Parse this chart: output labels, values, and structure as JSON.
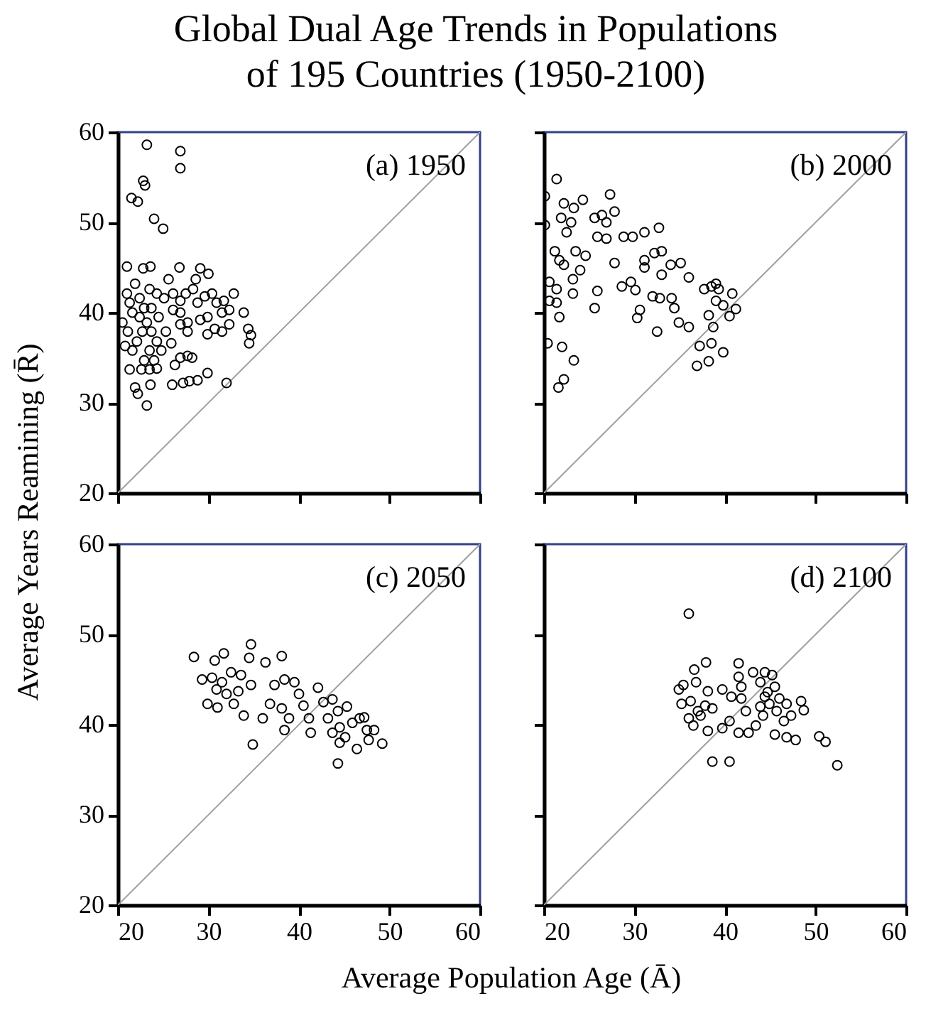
{
  "chart_data": [
    {
      "type": "scatter",
      "title": "Global Dual Age Trends in Populations of 195 Countries (1950-2100)",
      "xlabel": "Average Population Age (Ā)",
      "ylabel": "Average Years Reamining (R̄)",
      "annotations": [
        "(a) 1950"
      ],
      "xlim": [
        20,
        60
      ],
      "ylim": [
        20,
        60
      ],
      "xticks": [
        20,
        30,
        40,
        50,
        60
      ],
      "yticks": [
        20,
        30,
        40,
        50,
        60
      ],
      "tick_labels": "y",
      "series": [
        {
          "type": "line",
          "color": "#a0a0a0",
          "x": [
            20,
            60
          ],
          "values": [
            20,
            60
          ]
        },
        {
          "color": "#000000",
          "marker": "circle",
          "x": [
            23.2,
            26.9,
            26.9,
            22.8,
            23.0,
            21.5,
            22.2,
            24.0,
            25.0,
            21.0,
            22.8,
            23.6,
            26.8,
            29.1,
            30.0,
            34.4,
            34.7,
            34.5,
            26.3,
            26.9,
            27.7,
            28.2,
            26.0,
            27.2,
            27.9,
            28.8,
            29.9,
            32.0,
            21.9,
            22.2,
            23.6,
            23.2,
            22.6,
            24.3,
            21.0,
            21.3,
            20.5,
            21.1,
            20.8,
            21.6,
            22.1,
            22.7,
            23.2,
            23.7,
            24.3,
            24.8,
            23.5,
            22.9,
            24.0,
            22.4,
            21.9,
            23.5,
            24.3,
            25.1,
            21.6,
            22.4,
            22.9,
            23.7,
            24.5,
            25.3,
            25.9,
            21.3,
            23.5,
            25.6,
            26.1,
            26.9,
            27.5,
            28.3,
            28.8,
            29.6,
            30.4,
            30.9,
            31.7,
            32.8,
            32.3,
            33.9,
            31.5,
            29.9,
            30.7,
            29.9,
            31.5,
            32.3,
            27.7,
            27.7,
            26.9,
            26.1,
            29.1,
            28.6,
            26.9
          ],
          "values": [
            58.6,
            57.9,
            56.0,
            54.6,
            54.1,
            52.7,
            52.3,
            50.4,
            49.3,
            45.1,
            44.9,
            45.1,
            45.0,
            44.9,
            44.3,
            38.2,
            37.5,
            36.6,
            34.2,
            35.0,
            35.2,
            35.0,
            32.0,
            32.2,
            32.4,
            32.5,
            33.3,
            32.2,
            31.7,
            31.0,
            32.0,
            29.7,
            33.7,
            33.8,
            42.1,
            41.1,
            38.9,
            37.9,
            36.3,
            35.8,
            36.8,
            37.9,
            38.9,
            37.9,
            36.8,
            35.8,
            35.8,
            34.7,
            34.7,
            41.6,
            43.2,
            42.6,
            42.1,
            41.6,
            40.0,
            39.5,
            40.5,
            40.5,
            39.5,
            37.9,
            36.6,
            33.7,
            33.7,
            43.7,
            42.1,
            41.3,
            42.1,
            42.6,
            41.1,
            41.8,
            42.1,
            41.1,
            41.3,
            42.1,
            40.3,
            40.0,
            40.0,
            39.5,
            38.2,
            37.6,
            37.9,
            38.7,
            38.9,
            37.9,
            40.0,
            40.3,
            39.2,
            43.7,
            38.7
          ]
        }
      ]
    },
    {
      "type": "scatter",
      "annotations": [
        "(b) 2000"
      ],
      "xlim": [
        20,
        60
      ],
      "ylim": [
        20,
        60
      ],
      "xticks": [
        20,
        30,
        40,
        50,
        60
      ],
      "yticks": [
        20,
        30,
        40,
        50,
        60
      ],
      "tick_labels": false,
      "series": [
        {
          "type": "line",
          "color": "#a0a0a0",
          "x": [
            20,
            60
          ],
          "values": [
            20,
            60
          ]
        },
        {
          "color": "#000000",
          "marker": "circle",
          "x": [
            21.4,
            20.1,
            20.1,
            24.3,
            27.3,
            22.2,
            23.3,
            21.9,
            23.0,
            22.5,
            25.6,
            26.4,
            26.9,
            27.8,
            25.9,
            26.9,
            28.8,
            29.8,
            31.1,
            32.7,
            21.2,
            21.7,
            22.2,
            23.5,
            24.6,
            24.0,
            23.2,
            20.6,
            21.4,
            20.6,
            21.4,
            21.7,
            20.4,
            22.0,
            23.3,
            22.2,
            21.6,
            23.2,
            25.9,
            25.6,
            27.8,
            28.6,
            29.6,
            30.1,
            31.1,
            31.1,
            30.6,
            30.3,
            32.2,
            33.0,
            33.0,
            34.0,
            35.1,
            32.0,
            32.8,
            34.1,
            34.4,
            34.9,
            36.0,
            36.0,
            32.5,
            37.7,
            38.5,
            39.3,
            39.0,
            39.8,
            40.8,
            41.2,
            40.5,
            38.2,
            38.7,
            38.5,
            39.8,
            37.2,
            36.9,
            38.2,
            39.0
          ],
          "values": [
            54.8,
            52.9,
            49.7,
            52.5,
            53.1,
            52.1,
            51.6,
            50.5,
            50.0,
            48.9,
            50.5,
            50.8,
            50.0,
            51.2,
            48.4,
            48.2,
            48.4,
            48.4,
            48.9,
            49.4,
            46.8,
            45.8,
            45.3,
            46.8,
            46.3,
            44.7,
            43.7,
            43.4,
            42.6,
            41.3,
            41.1,
            39.5,
            36.6,
            36.2,
            34.7,
            32.6,
            31.7,
            42.1,
            42.4,
            40.5,
            45.5,
            42.9,
            43.4,
            42.5,
            45.8,
            45.0,
            40.3,
            39.4,
            46.6,
            46.8,
            44.2,
            45.3,
            45.5,
            41.8,
            41.6,
            41.6,
            40.5,
            38.9,
            43.9,
            38.4,
            37.9,
            42.6,
            42.9,
            42.6,
            41.3,
            40.8,
            42.1,
            40.4,
            39.6,
            39.7,
            38.4,
            36.6,
            35.6,
            36.3,
            34.1,
            34.6,
            43.2
          ]
        }
      ]
    },
    {
      "type": "scatter",
      "annotations": [
        "(c) 2050"
      ],
      "xlim": [
        20,
        60
      ],
      "ylim": [
        20,
        60
      ],
      "xticks": [
        20,
        30,
        40,
        50,
        60
      ],
      "yticks": [
        20,
        30,
        40,
        50,
        60
      ],
      "series": [
        {
          "type": "line",
          "color": "#a0a0a0",
          "x": [
            20,
            60
          ],
          "values": [
            20,
            60
          ]
        },
        {
          "color": "#000000",
          "marker": "circle",
          "x": [
            28.4,
            30.7,
            31.7,
            34.7,
            34.5,
            36.3,
            38.1,
            29.3,
            30.4,
            31.5,
            32.5,
            33.6,
            30.9,
            32.0,
            33.3,
            34.7,
            29.9,
            31.0,
            32.8,
            33.9,
            34.9,
            36.0,
            36.8,
            37.3,
            38.4,
            38.1,
            38.9,
            38.4,
            39.5,
            40.0,
            40.5,
            41.1,
            41.3,
            42.1,
            42.7,
            43.2,
            43.7,
            44.3,
            44.5,
            45.3,
            45.1,
            45.9,
            46.7,
            47.2,
            46.4,
            47.5,
            48.3,
            47.7,
            49.2,
            44.3,
            44.5,
            43.7
          ],
          "values": [
            47.5,
            47.1,
            47.9,
            48.9,
            47.4,
            46.9,
            47.6,
            45.0,
            45.2,
            44.7,
            45.8,
            45.5,
            43.9,
            43.4,
            43.7,
            44.4,
            42.3,
            41.9,
            42.3,
            41.0,
            37.8,
            40.7,
            42.3,
            44.4,
            45.0,
            41.8,
            40.7,
            39.4,
            44.7,
            43.4,
            42.1,
            40.7,
            39.1,
            44.1,
            42.5,
            40.7,
            42.8,
            41.5,
            39.7,
            42.0,
            38.6,
            40.2,
            40.7,
            40.8,
            37.3,
            39.4,
            39.4,
            38.3,
            37.9,
            35.7,
            38.0,
            39.1
          ]
        }
      ]
    },
    {
      "type": "scatter",
      "annotations": [
        "(d) 2100"
      ],
      "xlim": [
        20,
        60
      ],
      "ylim": [
        20,
        60
      ],
      "xticks": [
        20,
        30,
        40,
        50,
        60
      ],
      "yticks": [
        20,
        30,
        40,
        50,
        60
      ],
      "tick_labels": "x",
      "series": [
        {
          "type": "line",
          "color": "#a0a0a0",
          "x": [
            20,
            60
          ],
          "values": [
            20,
            60
          ]
        },
        {
          "color": "#000000",
          "marker": "circle",
          "x": [
            36.0,
            37.9,
            36.6,
            41.5,
            43.1,
            35.4,
            34.9,
            36.8,
            38.1,
            39.7,
            41.5,
            41.8,
            35.2,
            36.2,
            37.0,
            37.8,
            38.6,
            36.0,
            37.3,
            36.5,
            38.1,
            39.7,
            40.5,
            40.7,
            41.8,
            42.3,
            41.5,
            42.6,
            43.4,
            43.9,
            43.9,
            44.4,
            45.2,
            44.7,
            45.5,
            44.9,
            46.0,
            45.7,
            46.8,
            47.3,
            46.5,
            48.4,
            48.7,
            45.5,
            46.8,
            47.8,
            50.4,
            51.1,
            52.4,
            38.6,
            40.5,
            44.2,
            44.4
          ],
          "values": [
            52.3,
            46.9,
            46.1,
            46.8,
            45.8,
            44.4,
            43.9,
            44.7,
            43.7,
            43.9,
            45.3,
            44.2,
            42.3,
            42.6,
            41.5,
            42.1,
            41.8,
            40.7,
            41.0,
            39.9,
            39.3,
            39.6,
            40.4,
            43.1,
            42.9,
            41.5,
            39.1,
            39.1,
            39.9,
            42.0,
            44.7,
            45.8,
            45.5,
            43.6,
            44.2,
            42.3,
            42.9,
            41.5,
            42.3,
            41.0,
            40.4,
            42.6,
            41.6,
            38.9,
            38.6,
            38.3,
            38.7,
            38.1,
            35.5,
            35.9,
            35.9,
            41.0,
            43.1
          ]
        }
      ]
    }
  ]
}
